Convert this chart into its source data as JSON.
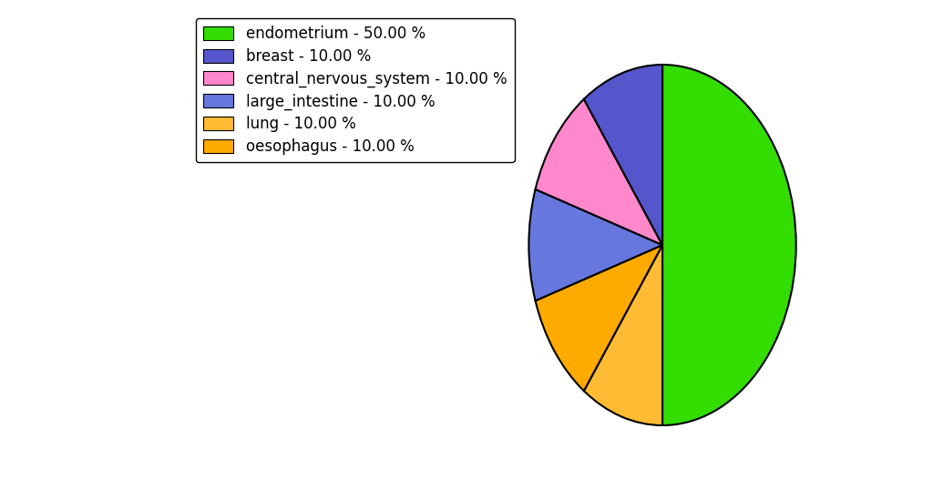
{
  "labels": [
    "endometrium",
    "lung",
    "oesophagus",
    "large_intestine",
    "central_nervous_system",
    "breast"
  ],
  "values": [
    50,
    10,
    10,
    10,
    10,
    10
  ],
  "colors": [
    "#33dd00",
    "#ffbb33",
    "#ffaa00",
    "#6677dd",
    "#ff88cc",
    "#5555cc"
  ],
  "legend_labels": [
    "endometrium - 50.00 %",
    "breast - 10.00 %",
    "central_nervous_system - 10.00 %",
    "large_intestine - 10.00 %",
    "lung - 10.00 %",
    "oesophagus - 10.00 %"
  ],
  "legend_colors": [
    "#33dd00",
    "#5555cc",
    "#ff88cc",
    "#6677dd",
    "#ffbb33",
    "#ffaa00"
  ],
  "startangle": 90,
  "figsize": [
    10.24,
    5.38
  ],
  "dpi": 100
}
